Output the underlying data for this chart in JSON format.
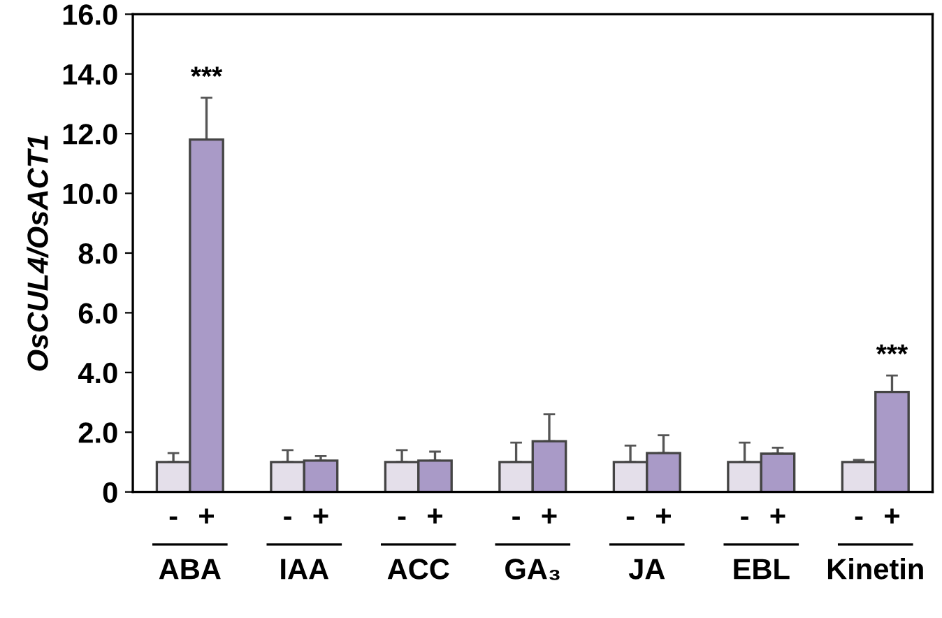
{
  "chart_data": {
    "type": "bar",
    "ylabel": "OsCUL4/OsACT1",
    "categories": [
      "ABA",
      "IAA",
      "ACC",
      "GA₃",
      "JA",
      "EBL",
      "Kinetin"
    ],
    "series": [
      {
        "name": "-",
        "color": "#e4dfea",
        "values": [
          1.0,
          1.0,
          1.0,
          1.0,
          1.0,
          1.0,
          1.0
        ],
        "errors": [
          [
            1.0,
            1.3
          ],
          [
            1.0,
            1.4
          ],
          [
            1.0,
            1.4
          ],
          [
            1.0,
            1.65
          ],
          [
            1.0,
            1.55
          ],
          [
            1.0,
            1.65
          ],
          [
            1.0,
            1.07
          ]
        ]
      },
      {
        "name": "+",
        "color": "#a99ac7",
        "values": [
          11.8,
          1.05,
          1.05,
          1.7,
          1.3,
          1.28,
          3.35
        ],
        "errors": [
          [
            11.8,
            13.2
          ],
          [
            1.05,
            1.2
          ],
          [
            1.05,
            1.35
          ],
          [
            1.7,
            2.6
          ],
          [
            1.3,
            1.9
          ],
          [
            1.28,
            1.48
          ],
          [
            3.35,
            3.9
          ]
        ]
      }
    ],
    "ylim": [
      0,
      16
    ],
    "yticks": [
      {
        "value": 0,
        "label": "0"
      },
      {
        "value": 2,
        "label": "2.0"
      },
      {
        "value": 4,
        "label": "4.0"
      },
      {
        "value": 6,
        "label": "6.0"
      },
      {
        "value": 8,
        "label": "8.0"
      },
      {
        "value": 10,
        "label": "10.0"
      },
      {
        "value": 12,
        "label": "12.0"
      },
      {
        "value": 14,
        "label": "14.0"
      },
      {
        "value": 16,
        "label": "16.0"
      }
    ],
    "annotations": [
      "***",
      "***"
    ],
    "grid": false,
    "legend": false
  }
}
